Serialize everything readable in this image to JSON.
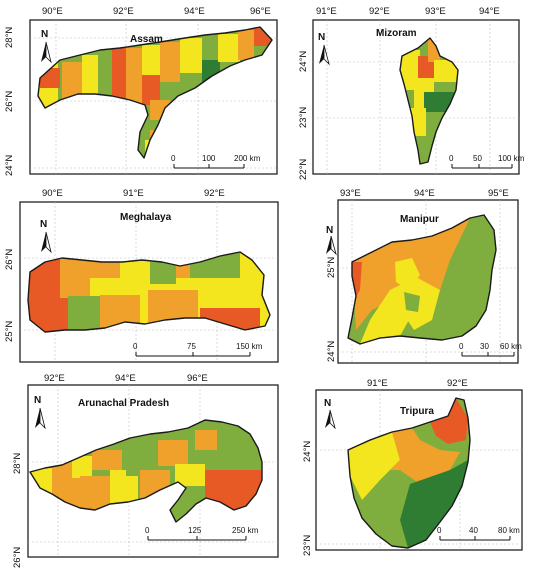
{
  "colors": {
    "dark_green": "#2e7d32",
    "green": "#7fae3e",
    "yellow": "#f4e61e",
    "orange": "#f0a12c",
    "red": "#e85a25"
  },
  "north_label": "N",
  "panels": {
    "assam": {
      "title": "Assam",
      "x_ticks": [
        "90°E",
        "92°E",
        "94°E",
        "96°E"
      ],
      "y_ticks": [
        "28°N",
        "26°N",
        "24°N"
      ],
      "scale_labels": [
        "0",
        "100",
        "200 km"
      ]
    },
    "mizoram": {
      "title": "Mizoram",
      "x_ticks": [
        "91°E",
        "92°E",
        "93°E",
        "94°E"
      ],
      "y_ticks": [
        "24°N",
        "23°N",
        "22°N"
      ],
      "scale_labels": [
        "0",
        "50",
        "100 km"
      ]
    },
    "meghalaya": {
      "title": "Meghalaya",
      "x_ticks": [
        "90°E",
        "91°E",
        "92°E"
      ],
      "y_ticks": [
        "26°N",
        "25°N"
      ],
      "scale_labels": [
        "0",
        "75",
        "150 km"
      ]
    },
    "manipur": {
      "title": "Manipur",
      "x_ticks": [
        "93°E",
        "94°E",
        "95°E"
      ],
      "y_ticks": [
        "25°N",
        "24°N"
      ],
      "scale_labels": [
        "0",
        "30",
        "60 km"
      ]
    },
    "arunachal": {
      "title": "Arunachal Pradesh",
      "x_ticks": [
        "92°E",
        "94°E",
        "96°E"
      ],
      "y_ticks": [
        "28°N",
        "26°N"
      ],
      "scale_labels": [
        "0",
        "125",
        "250 km"
      ]
    },
    "tripura": {
      "title": "Tripura",
      "x_ticks": [
        "91°E",
        "92°E"
      ],
      "y_ticks": [
        "24°N",
        "23°N"
      ],
      "scale_labels": [
        "0",
        "40",
        "80 km"
      ]
    }
  }
}
